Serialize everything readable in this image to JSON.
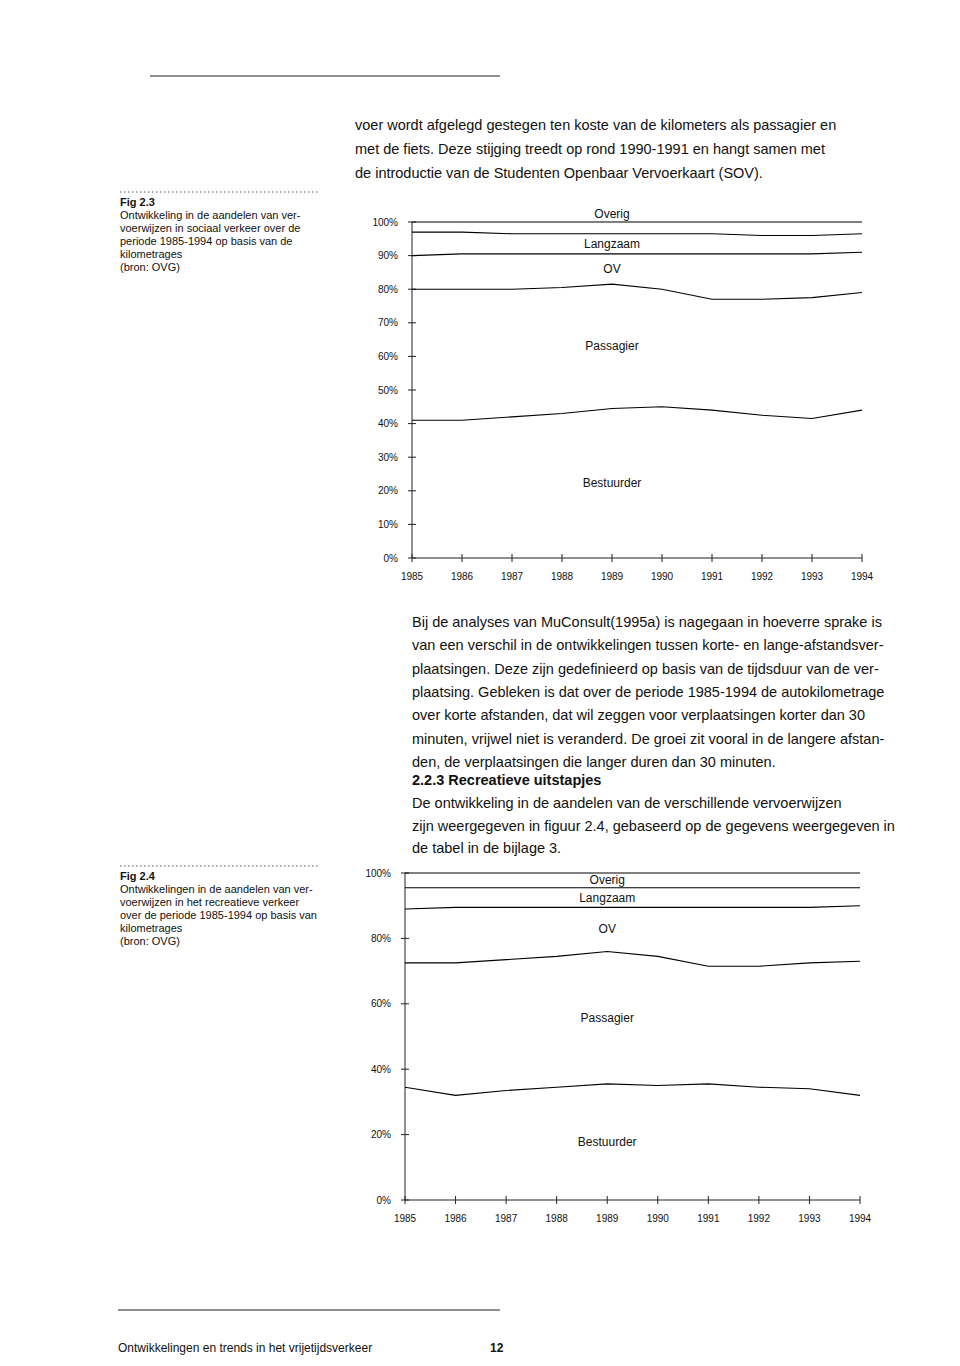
{
  "page": {
    "intro_lines": [
      "voer wordt afgelegd gestegen ten koste van de kilometers als passagier en",
      "met de fiets. Deze stijging treedt op rond 1990-1991 en hangt samen met",
      "de introductie van de Studenten Openbaar Vervoerkaart (SOV)."
    ],
    "fig_2_3": {
      "number": "Fig 2.3",
      "caption_lines": [
        "Ontwikkeling in de aandelen van ver-",
        "voerwijzen in sociaal verkeer over de",
        "periode 1985-1994 op basis van de",
        "kilometrages",
        "(bron: OVG)"
      ]
    },
    "paragraph_lines": [
      "Bij de analyses van MuConsult(1995a) is nagegaan in hoeverre sprake is",
      "van een verschil in de ontwikkelingen tussen korte- en lange-afstandsver-",
      "plaatsingen. Deze zijn gedefinieerd op basis van de tijdsduur van de ver-",
      "plaatsing. Gebleken is dat over de periode 1985-1994 de autokilometrage",
      "over korte afstanden, dat wil zeggen voor verplaatsingen korter dan 30",
      "minuten, vrijwel niet is veranderd. De groei zit vooral in de langere afstan-",
      "den, de verplaatsingen die langer duren dan 30 minuten."
    ],
    "section": {
      "heading": "2.2.3 Recreatieve uitstapjes",
      "lines": [
        "De ontwikkeling in de aandelen van de verschillende vervoerwijzen",
        "zijn weergegeven in figuur 2.4, gebaseerd op de gegevens weergegeven in",
        "de tabel in de bijlage 3."
      ]
    },
    "fig_2_4": {
      "number": "Fig 2.4",
      "caption_lines": [
        "Ontwikkelingen in de aandelen van ver-",
        "voerwijzen in het recreatieve verkeer",
        "over de periode 1985-1994 op basis van",
        "kilometrages",
        "(bron: OVG)"
      ]
    },
    "footer": {
      "title": "Ontwikkelingen en trends in het vrijetijdsverkeer",
      "page": "12"
    }
  },
  "chart_data": [
    {
      "type": "area",
      "stacked": true,
      "grid": false,
      "categories": [
        "1985",
        "1986",
        "1987",
        "1988",
        "1989",
        "1990",
        "1991",
        "1992",
        "1993",
        "1994"
      ],
      "ylim": [
        0,
        100
      ],
      "yticks": [
        {
          "value": 0,
          "label": "0%"
        },
        {
          "value": 10,
          "label": "10%"
        },
        {
          "value": 20,
          "label": "20%"
        },
        {
          "value": 30,
          "label": "30%"
        },
        {
          "value": 40,
          "label": "40%"
        },
        {
          "value": 50,
          "label": "50%"
        },
        {
          "value": 60,
          "label": "60%"
        },
        {
          "value": 70,
          "label": "70%"
        },
        {
          "value": 80,
          "label": "80%"
        },
        {
          "value": 90,
          "label": "90%"
        },
        {
          "value": 100,
          "label": "100%"
        }
      ],
      "series": [
        {
          "name": "Bestuurder",
          "color": "#000000",
          "values": [
            41,
            41,
            42,
            43,
            44.5,
            45,
            44,
            42.5,
            41.5,
            44
          ]
        },
        {
          "name": "Passagier",
          "color": "#000000",
          "values": [
            39,
            39,
            38,
            37.5,
            37,
            35,
            33,
            34.5,
            36,
            35
          ]
        },
        {
          "name": "OV",
          "color": "#000000",
          "values": [
            10,
            10.5,
            10.5,
            10,
            9,
            10.5,
            13.5,
            13.5,
            13,
            12
          ]
        },
        {
          "name": "Langzaam",
          "color": "#000000",
          "values": [
            7,
            6.5,
            6,
            6,
            6,
            6,
            6,
            5.5,
            5.5,
            5.5
          ]
        },
        {
          "name": "Overig",
          "color": "#000000",
          "values": [
            3,
            3,
            3.5,
            3.5,
            3.5,
            3.5,
            3.5,
            4,
            4,
            3.5
          ]
        }
      ]
    },
    {
      "type": "area",
      "stacked": true,
      "grid": false,
      "categories": [
        "1985",
        "1986",
        "1987",
        "1988",
        "1989",
        "1990",
        "1991",
        "1992",
        "1993",
        "1994"
      ],
      "ylim": [
        0,
        100
      ],
      "yticks": [
        {
          "value": 0,
          "label": "0%"
        },
        {
          "value": 20,
          "label": "20%"
        },
        {
          "value": 40,
          "label": "40%"
        },
        {
          "value": 60,
          "label": "60%"
        },
        {
          "value": 80,
          "label": "80%"
        },
        {
          "value": 100,
          "label": "100%"
        }
      ],
      "series": [
        {
          "name": "Bestuurder",
          "color": "#000000",
          "values": [
            34.5,
            32,
            33.5,
            34.5,
            35.5,
            35,
            35.5,
            34.5,
            34,
            32
          ]
        },
        {
          "name": "Passagier",
          "color": "#000000",
          "values": [
            38,
            40.5,
            40,
            40,
            40.5,
            39.5,
            36,
            37,
            38.5,
            41
          ]
        },
        {
          "name": "OV",
          "color": "#000000",
          "values": [
            16.5,
            17,
            16,
            15,
            13.5,
            15,
            18,
            18,
            17,
            17
          ]
        },
        {
          "name": "Langzaam",
          "color": "#000000",
          "values": [
            6.5,
            6,
            6,
            6,
            6,
            6,
            6,
            6,
            6,
            5.5
          ]
        },
        {
          "name": "Overig",
          "color": "#000000",
          "values": [
            4.5,
            4.5,
            4.5,
            4.5,
            4.5,
            4.5,
            4.5,
            4.5,
            4.5,
            4.5
          ]
        }
      ]
    }
  ]
}
